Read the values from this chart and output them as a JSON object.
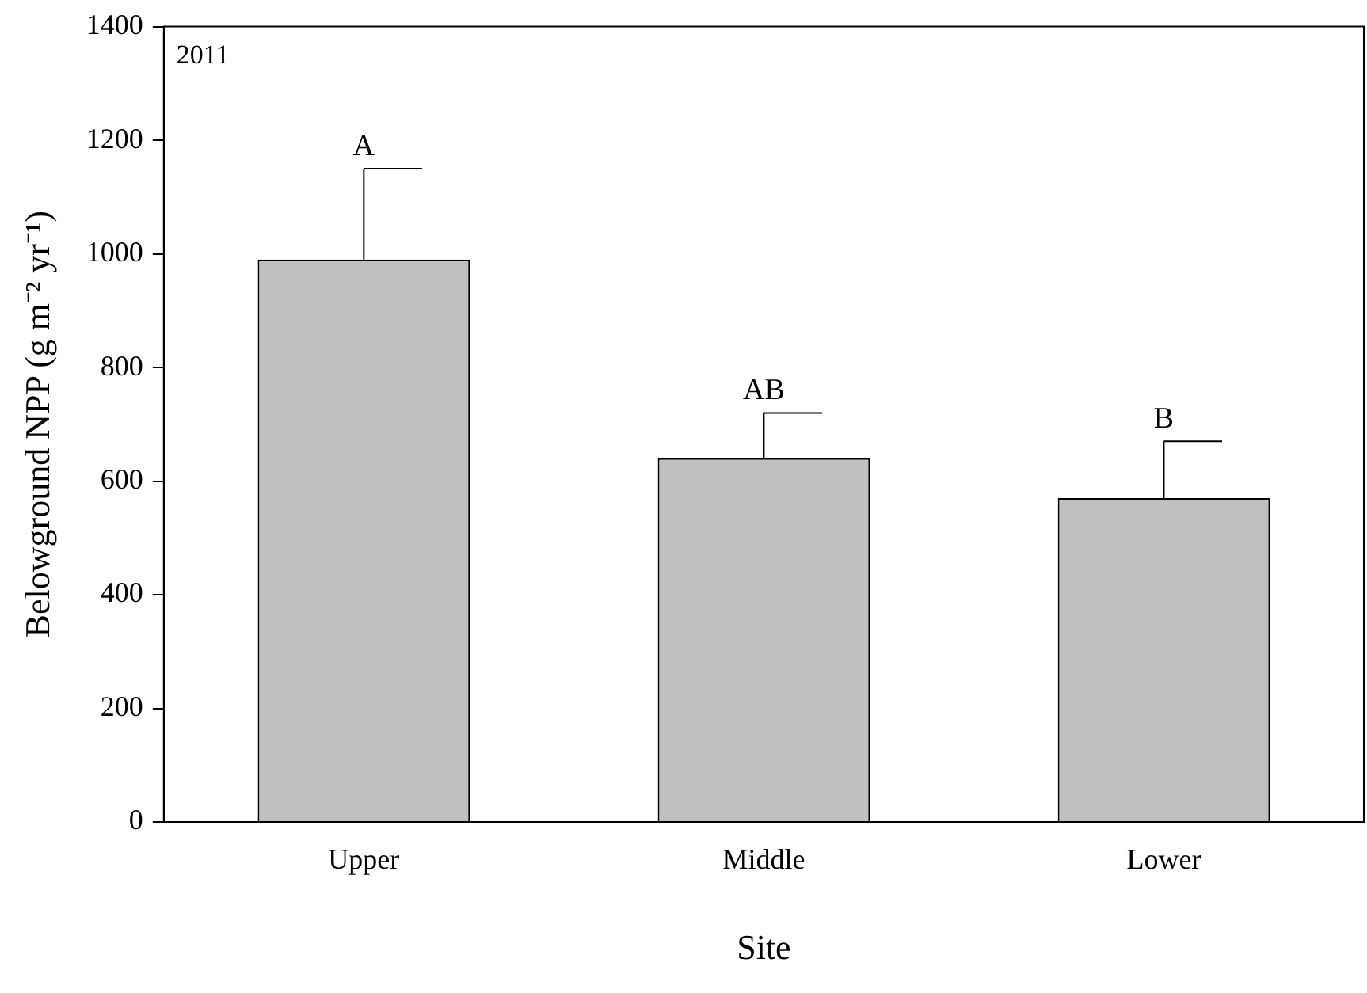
{
  "chart_data": {
    "type": "bar",
    "categories": [
      "Upper",
      "Middle",
      "Lower"
    ],
    "values": [
      990,
      640,
      570
    ],
    "errors": [
      [
        990,
        1150
      ],
      [
        640,
        720
      ],
      [
        570,
        670
      ]
    ],
    "color": "#c0c0c0",
    "xlabel": "Site",
    "ylabel": "Belowground NPP (g m⁻² yr⁻¹)",
    "ylim": [
      0,
      1400
    ],
    "yticks": [
      0,
      200,
      400,
      600,
      800,
      1000,
      1200,
      1400
    ],
    "grid": false,
    "legend": false,
    "annotations": [
      "2011",
      "A",
      "AB",
      "B"
    ]
  }
}
